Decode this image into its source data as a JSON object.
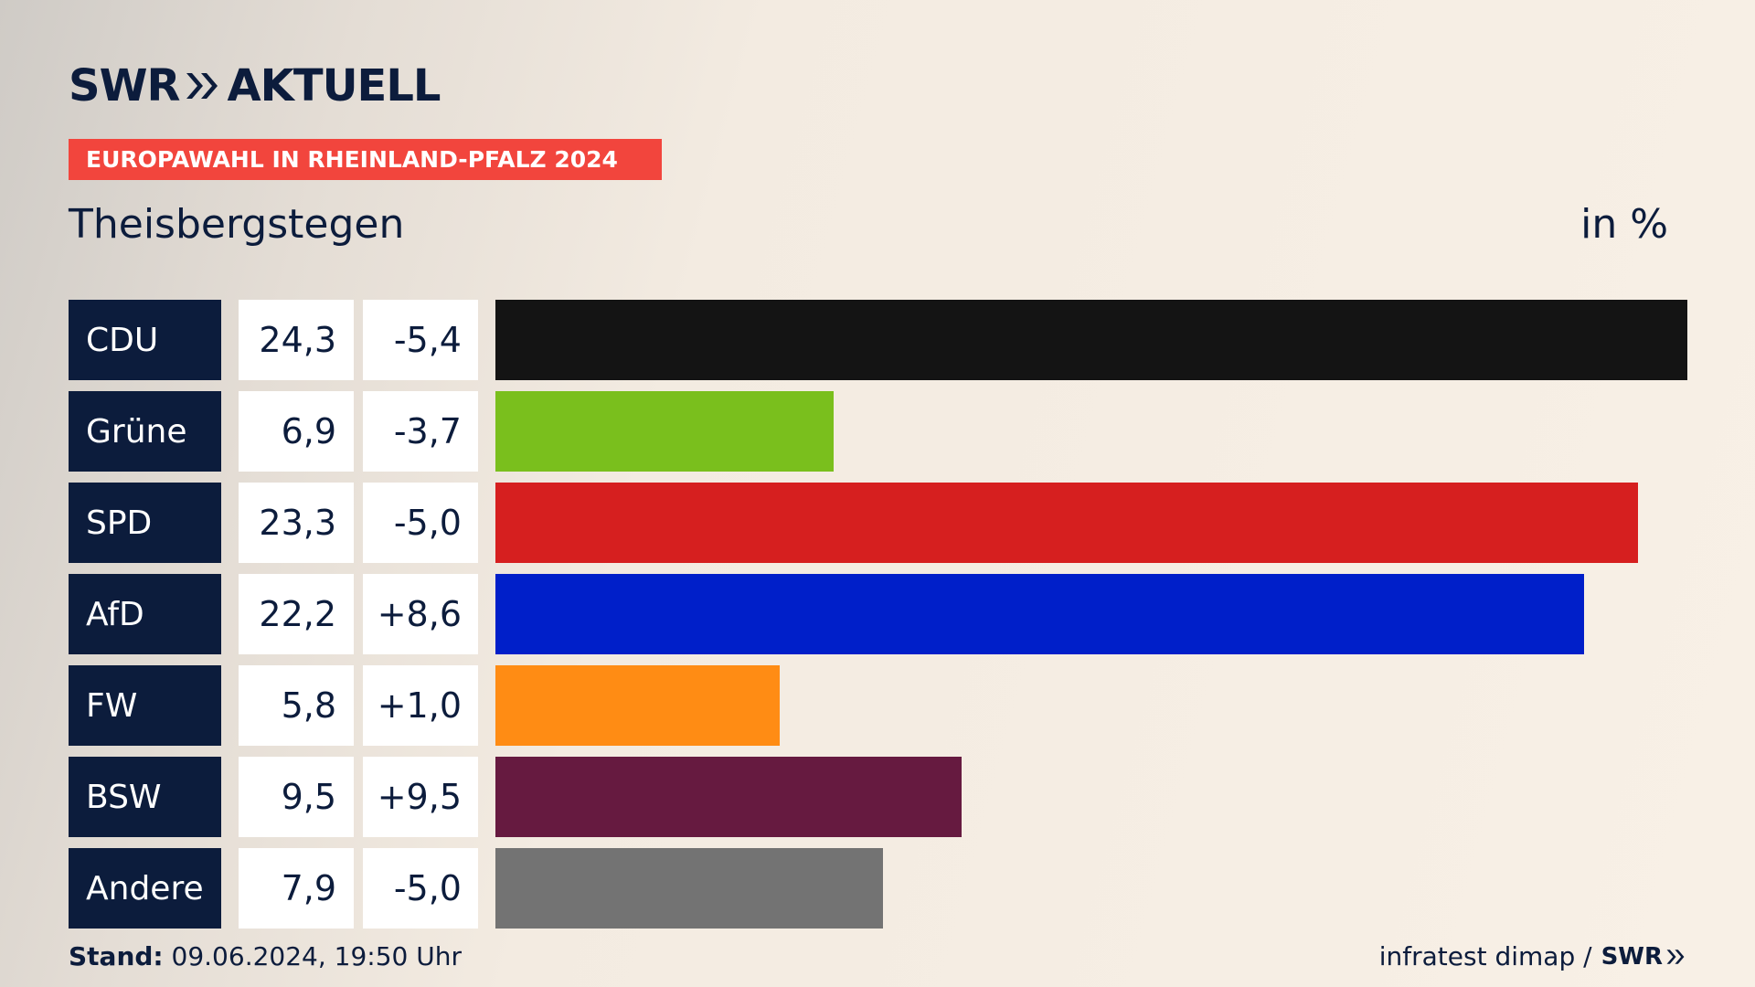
{
  "brand": {
    "logo_left": "SWR",
    "logo_right": "AKTUELL"
  },
  "kicker": "EUROPAWAHL IN RHEINLAND-PFALZ 2024",
  "place": "Theisbergstegen",
  "unit": "in %",
  "chart_data": {
    "type": "bar",
    "orientation": "horizontal",
    "title": "EUROPAWAHL IN RHEINLAND-PFALZ 2024",
    "subtitle": "Theisbergstegen",
    "ylabel": "in %",
    "categories": [
      "CDU",
      "Grüne",
      "SPD",
      "AfD",
      "FW",
      "BSW",
      "Andere"
    ],
    "values": [
      24.3,
      6.9,
      23.3,
      22.2,
      5.8,
      9.5,
      7.9
    ],
    "value_labels": [
      "24,3",
      "6,9",
      "23,3",
      "22,2",
      "5,8",
      "9,5",
      "7,9"
    ],
    "diff_labels": [
      "-5,4",
      "-3,7",
      "-5,0",
      "+8,6",
      "+1,0",
      "+9,5",
      "-5,0"
    ],
    "diffs": [
      -5.4,
      -3.7,
      -5.0,
      8.6,
      1.0,
      9.5,
      -5.0
    ],
    "colors": [
      "#141414",
      "#7abf1d",
      "#d61f1f",
      "#001fc9",
      "#ff8c14",
      "#661a40",
      "#737373"
    ],
    "xlim": [
      0,
      24.3
    ],
    "grid": false,
    "legend": "none"
  },
  "footer": {
    "stand_label": "Stand:",
    "stand_value": "09.06.2024, 19:50 Uhr",
    "source": "infratest dimap /",
    "source_brand": "SWR"
  },
  "colors": {
    "navy": "#0c1c3c",
    "accent": "#f2453d"
  }
}
